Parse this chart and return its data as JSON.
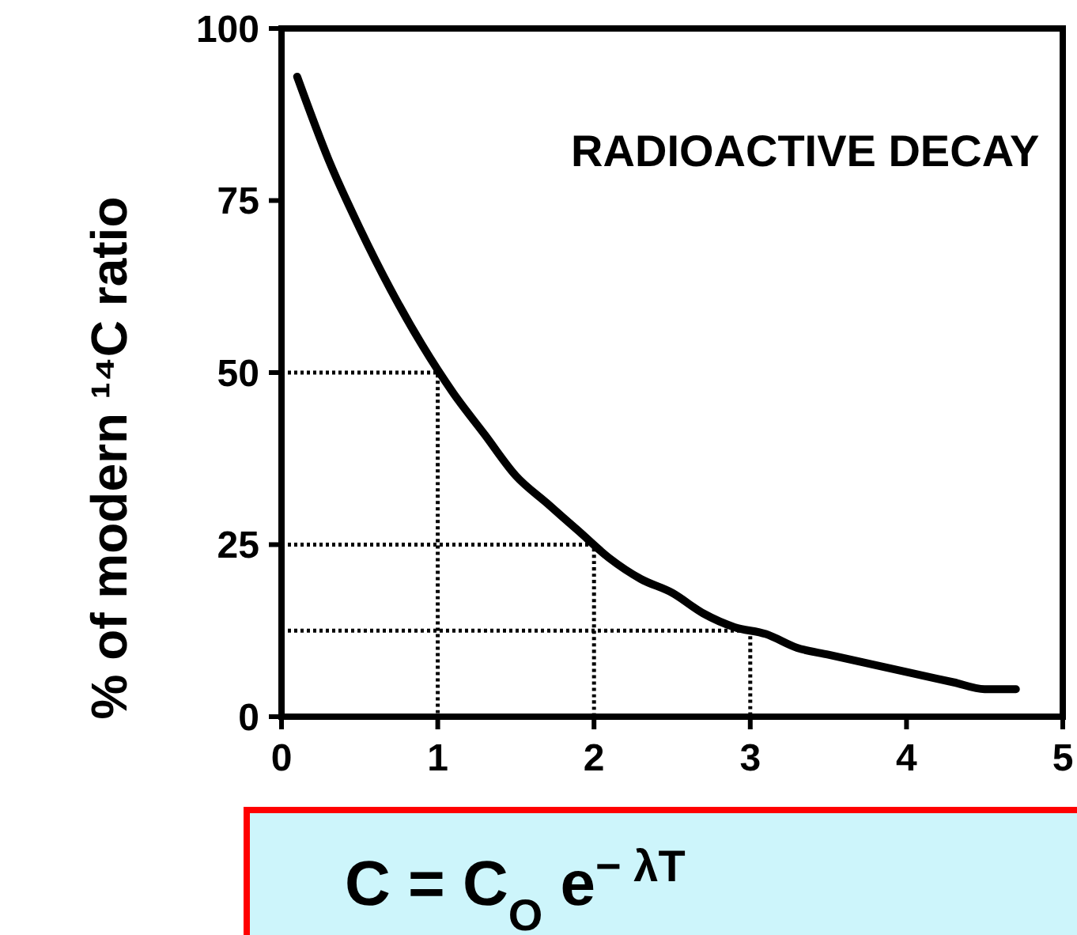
{
  "chart_data": {
    "type": "line",
    "ylabel": "% of modern ¹⁴C ratio",
    "xlim": [
      0,
      5
    ],
    "ylim": [
      0,
      100
    ],
    "xticks": [
      0,
      1,
      2,
      3,
      4,
      5
    ],
    "yticks": [
      0,
      25,
      50,
      75,
      100
    ],
    "grid": false,
    "annotations": [
      "RADIOACTIVE DECAY",
      "C = C$_{O}$ e$^{− λT}$"
    ],
    "series": [
      {
        "color": "#000000",
        "line_style": "solid",
        "x": [
          0.1,
          0.3,
          0.5,
          0.7,
          0.9,
          1.1,
          1.3,
          1.5,
          1.7,
          1.9,
          2.1,
          2.3,
          2.5,
          2.7,
          2.9,
          3.1,
          3.3,
          3.5,
          3.7,
          3.9,
          4.1,
          4.3,
          4.5,
          4.7
        ],
        "values": [
          93,
          81,
          71,
          62,
          54,
          47,
          41,
          35,
          31,
          27,
          23,
          20,
          18,
          15,
          13,
          12,
          10,
          9,
          8,
          7,
          6,
          5,
          4,
          4
        ]
      },
      {
        "type": "line",
        "color": "#000000",
        "line_style": "dotted",
        "x": [
          0,
          1,
          1
        ],
        "values": [
          50,
          50,
          0
        ]
      },
      {
        "type": "line",
        "color": "#000000",
        "line_style": "dotted",
        "x": [
          0,
          2,
          2
        ],
        "values": [
          25,
          25,
          0
        ]
      },
      {
        "type": "line",
        "color": "#000000",
        "line_style": "dotted",
        "x": [
          0,
          3,
          3
        ],
        "values": [
          12.5,
          12.5,
          0
        ]
      }
    ]
  }
}
